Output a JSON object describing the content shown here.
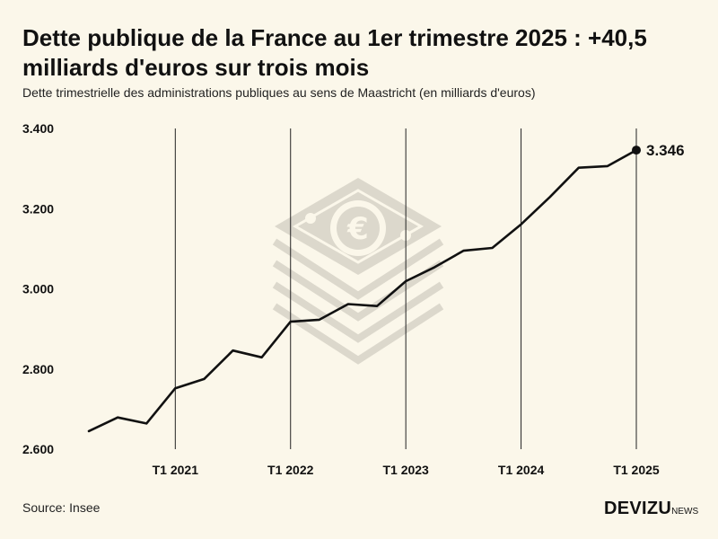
{
  "header": {
    "title_line1": "Dette publique de la France au 1er trimestre 2025 : +40,5",
    "title_line2": "milliards d'euros sur trois mois",
    "subtitle": "Dette trimestrielle des administrations publiques au sens de Maastricht (en milliards d'euros)"
  },
  "footer": {
    "source": "Source: Insee",
    "logo_main": "DEVIZU",
    "logo_sub": "NEWS"
  },
  "colors": {
    "background": "#fbf7ea",
    "line": "#111111",
    "gridline": "#222222",
    "watermark": "#dcd8cc"
  },
  "icons": {
    "watermark": "euro-banknote-stack-icon"
  },
  "chart_data": {
    "type": "line",
    "title": "Dette publique de la France au 1er trimestre 2025 : +40,5 milliards d'euros sur trois mois",
    "subtitle": "Dette trimestrielle des administrations publiques au sens de Maastricht (en milliards d'euros)",
    "xlabel": "",
    "ylabel": "",
    "ylim": [
      2600,
      3400
    ],
    "yticks": [
      2600,
      2800,
      3000,
      3200,
      3400
    ],
    "ytick_labels": [
      "2.600",
      "2.800",
      "3.000",
      "3.200",
      "3.400"
    ],
    "x": [
      "T2 2020",
      "T3 2020",
      "T4 2020",
      "T1 2021",
      "T2 2021",
      "T3 2021",
      "T4 2021",
      "T1 2022",
      "T2 2022",
      "T3 2022",
      "T4 2022",
      "T1 2023",
      "T2 2023",
      "T3 2023",
      "T4 2023",
      "T1 2024",
      "T2 2024",
      "T3 2024",
      "T4 2024",
      "T1 2025"
    ],
    "xticks": [
      "T1 2021",
      "T1 2022",
      "T1 2023",
      "T1 2024",
      "T1 2025"
    ],
    "vertical_gridlines_at": [
      "T1 2021",
      "T1 2022",
      "T1 2023",
      "T1 2024",
      "T1 2025"
    ],
    "grid": "vertical",
    "series": [
      {
        "values": [
          2645,
          2679,
          2664,
          2752,
          2775,
          2846,
          2829,
          2918,
          2923,
          2962,
          2957,
          3019,
          3054,
          3095,
          3102,
          3161,
          3229,
          3302,
          3306,
          3346
        ]
      }
    ],
    "annotations": [
      {
        "x": "T1 2025",
        "y": 3346,
        "text": "3.346"
      }
    ]
  }
}
